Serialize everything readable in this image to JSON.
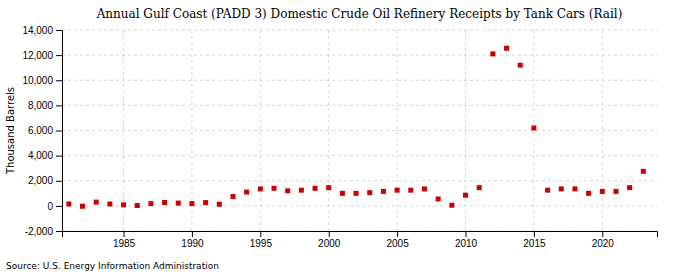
{
  "chart_data": {
    "type": "scatter",
    "title": "Annual Gulf Coast (PADD 3) Domestic Crude Oil Refinery Receipts by Tank Cars (Rail)",
    "ylabel": "Thousand Barrels",
    "source": "Source: U.S. Energy Information Administration",
    "x": [
      1981,
      1982,
      1983,
      1984,
      1985,
      1986,
      1987,
      1988,
      1989,
      1990,
      1991,
      1992,
      1993,
      1994,
      1995,
      1996,
      1997,
      1998,
      1999,
      2000,
      2001,
      2002,
      2003,
      2004,
      2005,
      2006,
      2007,
      2008,
      2009,
      2010,
      2011,
      2012,
      2013,
      2014,
      2015,
      2016,
      2017,
      2018,
      2019,
      2020,
      2021,
      2022,
      2023
    ],
    "values": [
      150,
      -30,
      300,
      150,
      80,
      30,
      180,
      270,
      220,
      180,
      260,
      130,
      750,
      1100,
      1350,
      1400,
      1200,
      1250,
      1400,
      1450,
      1000,
      1000,
      1050,
      1150,
      1250,
      1250,
      1350,
      550,
      50,
      850,
      1450,
      12100,
      12550,
      11200,
      6200,
      1250,
      1350,
      1350,
      1000,
      1150,
      1150,
      1450,
      2750
    ],
    "color": "#cc0000",
    "marker": "square",
    "xlim": [
      1980.5,
      2024
    ],
    "xticks": [
      1985,
      1990,
      1995,
      2000,
      2005,
      2010,
      2015,
      2020
    ],
    "ylim": [
      -2000,
      14000
    ],
    "yticks": [
      {
        "value": -2000,
        "label": "-2,000"
      },
      0,
      {
        "value": 2000,
        "label": "2,000"
      },
      {
        "value": 4000,
        "label": "4,000"
      },
      {
        "value": 6000,
        "label": "6,000"
      },
      {
        "value": 8000,
        "label": "8,000"
      },
      {
        "value": 10000,
        "label": "10,000"
      },
      {
        "value": 12000,
        "label": "12,000"
      },
      {
        "value": 14000,
        "label": "14,000"
      }
    ],
    "grid": true
  }
}
